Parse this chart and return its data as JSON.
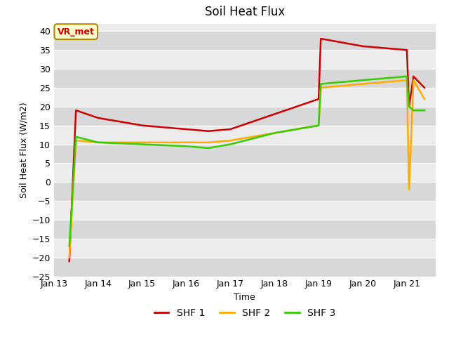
{
  "title": "Soil Heat Flux",
  "xlabel": "Time",
  "ylabel": "Soil Heat Flux (W/m2)",
  "ylim": [
    -25,
    42
  ],
  "yticks": [
    -25,
    -20,
    -15,
    -10,
    -5,
    0,
    5,
    10,
    15,
    20,
    25,
    30,
    35,
    40
  ],
  "bg_dark": "#d8d8d8",
  "bg_light": "#ececec",
  "annotation_text": "VR_met",
  "annotation_bg": "#ffffcc",
  "annotation_border": "#aa8800",
  "series": {
    "SHF 1": {
      "color": "#cc0000",
      "x": [
        13.35,
        13.5,
        14.0,
        15.0,
        16.0,
        16.5,
        17.0,
        18.0,
        19.0,
        19.05,
        20.0,
        21.0,
        21.05,
        21.15,
        21.4
      ],
      "y": [
        -21,
        19,
        17,
        15,
        14,
        13.5,
        14,
        18,
        22,
        38,
        36,
        35,
        20,
        28,
        25
      ]
    },
    "SHF 2": {
      "color": "#ffaa00",
      "x": [
        13.35,
        13.5,
        14.0,
        15.0,
        16.0,
        16.5,
        17.0,
        18.0,
        19.0,
        19.05,
        20.0,
        21.0,
        21.05,
        21.15,
        21.4
      ],
      "y": [
        -20,
        11,
        10.5,
        10.5,
        10.5,
        10.5,
        11,
        13,
        15,
        25,
        26,
        27,
        -2,
        27,
        22
      ]
    },
    "SHF 3": {
      "color": "#33cc00",
      "x": [
        13.35,
        13.5,
        14.0,
        15.0,
        16.0,
        16.5,
        17.0,
        18.0,
        19.0,
        19.05,
        20.0,
        21.0,
        21.05,
        21.15,
        21.4
      ],
      "y": [
        -17,
        12,
        10.5,
        10,
        9.5,
        9,
        10,
        13,
        15,
        26,
        27,
        28,
        20,
        19,
        19
      ]
    }
  },
  "xlim": [
    13.0,
    21.65
  ],
  "xticks": [
    13,
    14,
    15,
    16,
    17,
    18,
    19,
    20,
    21
  ],
  "xticklabels": [
    "Jan 13",
    "Jan 14",
    "Jan 15",
    "Jan 16",
    "Jan 17",
    "Jan 18",
    "Jan 19",
    "Jan 20",
    "Jan 21"
  ]
}
